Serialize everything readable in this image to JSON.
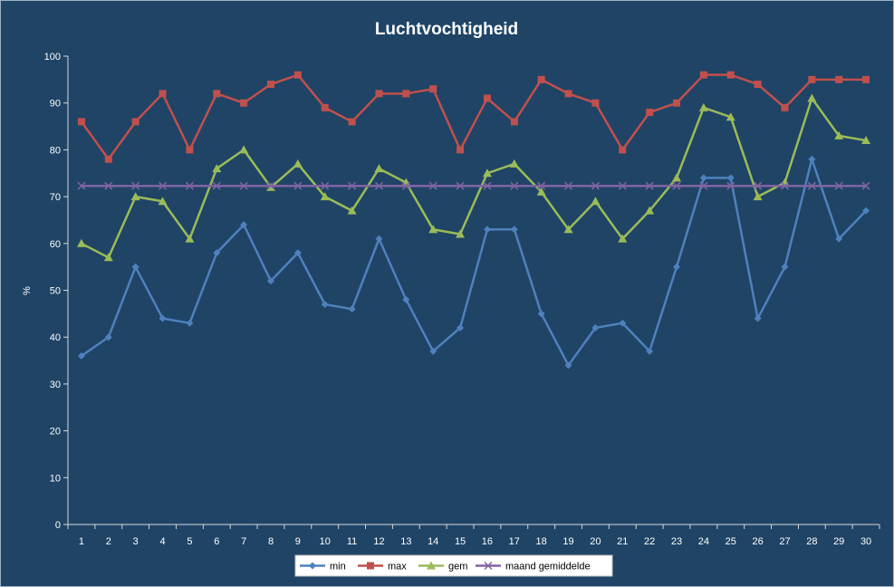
{
  "chart_data": {
    "type": "line",
    "title": "Luchtvochtigheid",
    "xlabel": "",
    "ylabel": "%",
    "ylim": [
      0,
      100
    ],
    "yticks": [
      0,
      10,
      20,
      30,
      40,
      50,
      60,
      70,
      80,
      90,
      100
    ],
    "x": [
      1,
      2,
      3,
      4,
      5,
      6,
      7,
      8,
      9,
      10,
      11,
      12,
      13,
      14,
      15,
      16,
      17,
      18,
      19,
      20,
      21,
      22,
      23,
      24,
      25,
      26,
      27,
      28,
      29,
      30
    ],
    "grid": false,
    "legend": "bottom",
    "series": [
      {
        "name": "min",
        "color": "#4f81bd",
        "marker": "diamond",
        "values": [
          36,
          40,
          55,
          44,
          43,
          58,
          64,
          52,
          58,
          47,
          46,
          61,
          48,
          37,
          42,
          63,
          63,
          45,
          34,
          42,
          43,
          37,
          55,
          74,
          74,
          44,
          55,
          78,
          61,
          67
        ]
      },
      {
        "name": "max",
        "color": "#c0504d",
        "marker": "square",
        "values": [
          86,
          78,
          86,
          92,
          80,
          92,
          90,
          94,
          96,
          89,
          86,
          92,
          92,
          93,
          80,
          91,
          86,
          95,
          92,
          90,
          80,
          88,
          90,
          96,
          96,
          94,
          89,
          95,
          95,
          95
        ]
      },
      {
        "name": "gem",
        "color": "#9bbb59",
        "marker": "triangle",
        "values": [
          60,
          57,
          70,
          69,
          61,
          76,
          80,
          72,
          77,
          70,
          67,
          76,
          73,
          63,
          62,
          75,
          77,
          71,
          63,
          69,
          61,
          67,
          74,
          89,
          87,
          70,
          73,
          91,
          83,
          82
        ]
      },
      {
        "name": "maand gemiddelde",
        "color": "#8064a2",
        "marker": "x",
        "values": [
          72.3,
          72.3,
          72.3,
          72.3,
          72.3,
          72.3,
          72.3,
          72.3,
          72.3,
          72.3,
          72.3,
          72.3,
          72.3,
          72.3,
          72.3,
          72.3,
          72.3,
          72.3,
          72.3,
          72.3,
          72.3,
          72.3,
          72.3,
          72.3,
          72.3,
          72.3,
          72.3,
          72.3,
          72.3,
          72.3
        ]
      }
    ]
  }
}
